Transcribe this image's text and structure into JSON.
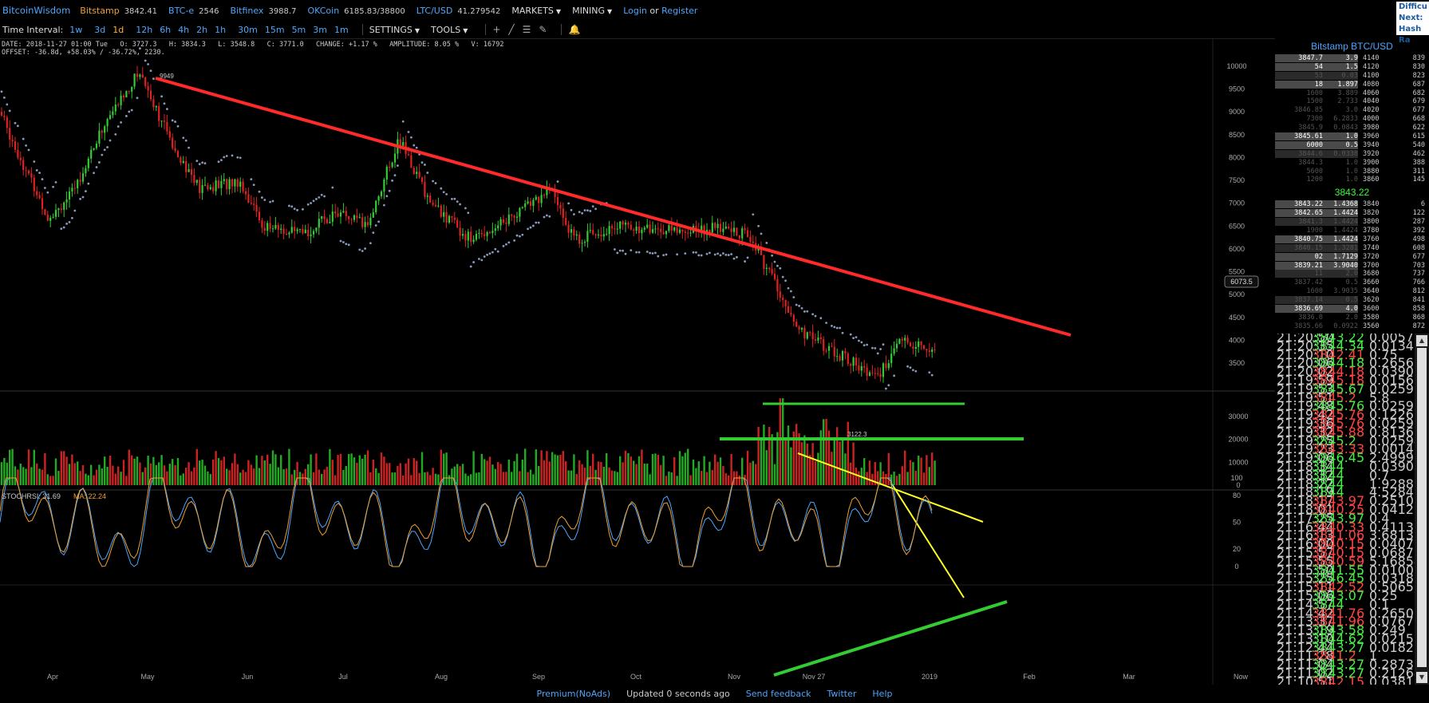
{
  "brand": "BitcoinWisdom",
  "tickers": [
    {
      "ex": "Bitstamp",
      "price": "3842.41",
      "style": "orange"
    },
    {
      "ex": "BTC-e",
      "price": "2546",
      "style": "blue"
    },
    {
      "ex": "Bitfinex",
      "price": "3988.7",
      "style": "blue"
    },
    {
      "ex": "OKCoin",
      "price": "6185.83/38800",
      "style": "blue"
    },
    {
      "ex": "LTC/USD",
      "price": "41.279542",
      "style": "blue"
    }
  ],
  "menus": {
    "markets": "MARKETS",
    "mining": "MINING",
    "login": "Login",
    "or": "or",
    "register": "Register"
  },
  "corner": [
    "Difficu",
    "Next:",
    "Hash Ra"
  ],
  "toolbar": {
    "label": "Time Interval:",
    "intervals": [
      "1w",
      "3d",
      "1d",
      "12h",
      "6h",
      "4h",
      "2h",
      "1h",
      "30m",
      "15m",
      "5m",
      "3m",
      "1m"
    ],
    "active": "1d",
    "settings": "SETTINGS",
    "tools": "TOOLS"
  },
  "info": {
    "line1": "DATE: 2018-11-27 01:00 Tue   O: 3727.3   H: 3834.3   L: 3548.8   C: 3771.0   CHANGE: +1.17 %   AMPLITUDE: 8.05 %   V: 16792",
    "line2": "OFFSET: -36.8d, +58.03% / -36.72%, 2230."
  },
  "chart_data": {
    "type": "candlestick",
    "price_axis": [
      10000,
      9500,
      9000,
      8500,
      8000,
      7500,
      7000,
      6500,
      6000,
      5500,
      5000,
      4500,
      4000,
      3500
    ],
    "volume_axis": [
      30000,
      20000,
      10000,
      0
    ],
    "stoch_axis": [
      100,
      80,
      50,
      20,
      0
    ],
    "months": [
      "Apr",
      "May",
      "Jun",
      "Jul",
      "Aug",
      "Sep",
      "Oct",
      "Nov",
      "Nov 27",
      "2019",
      "Feb",
      "Mar",
      "Now"
    ],
    "high_label": "9949",
    "low_label": "3122.3",
    "cursor_price": "6073.5",
    "stochrsi_label": "STOCHRSI: 31.69",
    "ma_label": "MA: 22.24",
    "colors": {
      "up": "#33cc33",
      "down": "#dd2222",
      "sar": "#8899bb",
      "trend_red": "#ff2a2a",
      "trend_green": "#33cc33",
      "trend_yellow": "#ffff22"
    }
  },
  "orderbook": {
    "title": "Bitstamp BTC/USD",
    "asks": [
      [
        "3847.7",
        "3.9",
        "4140",
        "839"
      ],
      [
        "54",
        "1.5",
        "4120",
        "830"
      ],
      [
        "53",
        "0.03",
        "4100",
        "823"
      ],
      [
        "18",
        "1.897",
        "4080",
        "687"
      ],
      [
        "1600",
        "3.889",
        "4060",
        "682"
      ],
      [
        "1500",
        "2.733",
        "4040",
        "679"
      ],
      [
        "3846.85",
        "3.0",
        "4020",
        "677"
      ],
      [
        "7300",
        "6.2833",
        "4000",
        "668"
      ],
      [
        "3845.9",
        "0.0843",
        "3980",
        "622"
      ],
      [
        "3845.61",
        "1.0",
        "3960",
        "615"
      ],
      [
        "6000",
        "0.5",
        "3940",
        "540"
      ],
      [
        "3844.6",
        "0.0338",
        "3920",
        "462"
      ],
      [
        "3844.3",
        "1.0",
        "3900",
        "388"
      ],
      [
        "5600",
        "1.0",
        "3880",
        "311"
      ],
      [
        "1200",
        "1.0",
        "3860",
        "145"
      ]
    ],
    "mid": "3843.22",
    "bids": [
      [
        "3843.22",
        "1.4368",
        "3840",
        "6"
      ],
      [
        "3842.65",
        "1.4424",
        "3820",
        "122"
      ],
      [
        "3841.3",
        "1.4424",
        "3800",
        "287"
      ],
      [
        "1900",
        "1.4424",
        "3780",
        "392"
      ],
      [
        "3840.75",
        "1.4424",
        "3760",
        "498"
      ],
      [
        "3840.15",
        "1.3281",
        "3740",
        "608"
      ],
      [
        "02",
        "1.7129",
        "3720",
        "677"
      ],
      [
        "3839.21",
        "3.9040",
        "3700",
        "703"
      ],
      [
        "11",
        "2.0",
        "3680",
        "737"
      ],
      [
        "3837.42",
        "0.5",
        "3660",
        "766"
      ],
      [
        "1600",
        "3.9035",
        "3640",
        "812"
      ],
      [
        "3837.14",
        "0.5",
        "3620",
        "841"
      ],
      [
        "3836.69",
        "4.0",
        "3600",
        "858"
      ],
      [
        "3836.0",
        "2.0",
        "3580",
        "868"
      ],
      [
        "3835.66",
        "0.0922",
        "3560",
        "872"
      ]
    ]
  },
  "trades": [
    [
      "21:20:50",
      "3843.22",
      "0.00579",
      "g"
    ],
    [
      "21:20:35",
      "3844.34",
      "0.01345",
      "g"
    ],
    [
      "21:20:10",
      "3842.41",
      "0.75",
      "r"
    ],
    [
      "21:20:06",
      "3844.18",
      "0.26563",
      "g"
    ],
    [
      "21:20:02",
      "3844.18",
      "0.03902",
      "r"
    ],
    [
      "21:19:59",
      "3845.18",
      "0.01563",
      "r"
    ],
    [
      "21:19:53",
      "3845.67",
      "0.02593",
      "g"
    ],
    [
      "21:19:51",
      "3845.2",
      "5.8",
      "r"
    ],
    [
      "21:19:48",
      "3845.76",
      "0.02593",
      "g"
    ],
    [
      "21:19:42",
      "3845.76",
      "0.12267",
      "r"
    ],
    [
      "21:19:36",
      "3845.76",
      "0.02593",
      "r"
    ],
    [
      "21:19:32",
      "3845.88",
      "0.81366",
      "r"
    ],
    [
      "21:19:25",
      "3845.2",
      "0.02594",
      "g"
    ],
    [
      "21:19:23",
      "3843.33",
      "0.0014",
      "r"
    ],
    [
      "21:19:06",
      "3846.45",
      "2.49999",
      "g"
    ],
    [
      "21:18:34",
      "3844",
      "0.03903",
      "g"
    ],
    [
      "21:18:32",
      "3844",
      "0.7",
      "g"
    ],
    [
      "21:18:22",
      "3844",
      "1.92885",
      "g"
    ],
    [
      "21:18:19",
      "3844",
      "4.5284",
      "g"
    ],
    [
      "21:18:17",
      "3843.97",
      "0.25100",
      "r"
    ],
    [
      "21:18:01",
      "3840.25",
      "0.04125",
      "r"
    ],
    [
      "21:17:25",
      "3843.97",
      "0.4",
      "g"
    ],
    [
      "21:16:44",
      "3840.33",
      "0.41138",
      "r"
    ],
    [
      "21:16:13",
      "3841.06",
      "3.68139",
      "r"
    ],
    [
      "21:16:00",
      "3840.15",
      "0.04072",
      "r"
    ],
    [
      "21:15:57",
      "3840.15",
      "0.0687",
      "r"
    ],
    [
      "21:15:55",
      "3840.59",
      "5.16854",
      "r"
    ],
    [
      "21:15:50",
      "3841.55",
      "0.01008",
      "g"
    ],
    [
      "21:15:25",
      "3846.45",
      "0.03183",
      "g"
    ],
    [
      "21:15:11",
      "3842.52",
      "0.50650",
      "r"
    ],
    [
      "21:15:06",
      "3843.07",
      "0.25",
      "g"
    ],
    [
      "21:14:57",
      "3844",
      "0.1",
      "g"
    ],
    [
      "21:14:42",
      "3841.76",
      "0.26507",
      "r"
    ],
    [
      "21:13:37",
      "3841.96",
      "0.07671",
      "r"
    ],
    [
      "21:13:19",
      "3843.58",
      "0.249",
      "g"
    ],
    [
      "21:13:10",
      "3844.62",
      "0.02153",
      "g"
    ],
    [
      "21:12:44",
      "3843.27",
      "0.01820",
      "g"
    ],
    [
      "21:11:28",
      "3841.2",
      "1",
      "r"
    ],
    [
      "21:11:04",
      "3843.27",
      "0.28735",
      "g"
    ],
    [
      "21:11:02",
      "3843.27",
      "0.21264",
      "g"
    ],
    [
      "21:10:51",
      "3842.15",
      "0.03817",
      "r"
    ],
    [
      "21:10:05",
      "3843.27",
      "0.25",
      "g"
    ]
  ],
  "footer": {
    "premium": "Premium(NoAds)",
    "updated": "Updated 0 seconds ago",
    "feedback": "Send feedback",
    "twitter": "Twitter",
    "help": "Help"
  }
}
